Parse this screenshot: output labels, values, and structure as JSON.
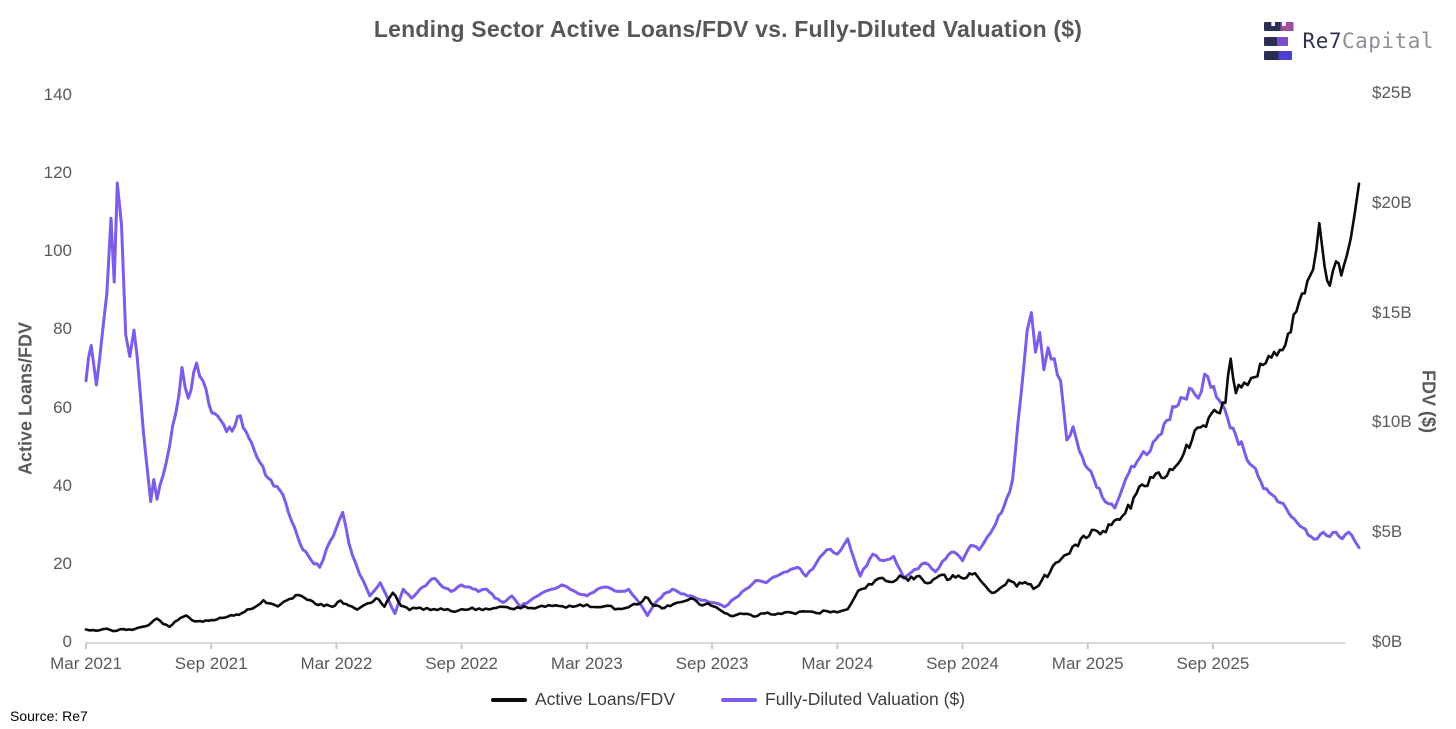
{
  "header": {
    "title": "Lending Sector Active Loans/FDV vs. Fully-Diluted Valuation ($)"
  },
  "branding": {
    "logo_text_primary": "Re7",
    "logo_text_secondary": "Capital",
    "logo_mark": "re7-stacked-bars-icon"
  },
  "footer": {
    "source": "Source: Re7"
  },
  "chart_data": {
    "type": "line",
    "title": "Lending Sector Active Loans/FDV vs. Fully-Diluted Valuation ($)",
    "grid": false,
    "legend_position": "bottom",
    "x_axis": {
      "unit": "months since Mar 2021",
      "range_months": [
        0,
        61
      ],
      "tick_positions_months": [
        0,
        6,
        12,
        18,
        24,
        30,
        36,
        42,
        48,
        54
      ],
      "tick_labels": [
        "Mar 2021",
        "Sep 2021",
        "Mar 2022",
        "Sep 2022",
        "Mar 2023",
        "Sep 2023",
        "Mar 2024",
        "Sep 2024",
        "Mar 2025",
        "Sep 2025"
      ]
    },
    "y_left": {
      "label": "Active Loans/FDV",
      "range": [
        0,
        140
      ],
      "ticks": [
        0,
        20,
        40,
        60,
        80,
        100,
        120,
        140
      ]
    },
    "y_right": {
      "label": "FDV ($)",
      "range_billions": [
        0,
        25
      ],
      "tick_values": [
        0,
        5,
        10,
        15,
        20,
        25
      ],
      "tick_labels": [
        "$0B",
        "$5B",
        "$10B",
        "$15B",
        "$20B",
        "$25B"
      ]
    },
    "series": [
      {
        "name": "Active Loans/FDV",
        "axis": "left",
        "color": "#0b0b0b",
        "points": [
          [
            0,
            3.2
          ],
          [
            0.5,
            2.9
          ],
          [
            1,
            3.4
          ],
          [
            1.3,
            2.8
          ],
          [
            1.8,
            3.3
          ],
          [
            2.2,
            3.1
          ],
          [
            2.6,
            3.8
          ],
          [
            3,
            4.3
          ],
          [
            3.4,
            6
          ],
          [
            3.7,
            4.6
          ],
          [
            4,
            3.9
          ],
          [
            4.4,
            5.6
          ],
          [
            4.8,
            6.8
          ],
          [
            5.2,
            5.3
          ],
          [
            5.6,
            5.2
          ],
          [
            6,
            5.6
          ],
          [
            6.4,
            6.2
          ],
          [
            6.8,
            6.5
          ],
          [
            7.2,
            7
          ],
          [
            7.6,
            7.7
          ],
          [
            8,
            8.6
          ],
          [
            8.5,
            10.7
          ],
          [
            8.8,
            9.9
          ],
          [
            9.2,
            9.1
          ],
          [
            9.6,
            10.6
          ],
          [
            10.2,
            12
          ],
          [
            10.6,
            10.8
          ],
          [
            11,
            9.7
          ],
          [
            11.4,
            9.2
          ],
          [
            11.8,
            9
          ],
          [
            12.2,
            10.6
          ],
          [
            12.6,
            9.3
          ],
          [
            13,
            8.3
          ],
          [
            13.5,
            9.9
          ],
          [
            13.9,
            11.2
          ],
          [
            14.3,
            9
          ],
          [
            14.7,
            12.6
          ],
          [
            15.1,
            9.3
          ],
          [
            15.5,
            8.2
          ],
          [
            16,
            8.8
          ],
          [
            16.5,
            8.2
          ],
          [
            17,
            8.6
          ],
          [
            17.5,
            7.9
          ],
          [
            18,
            8.4
          ],
          [
            18.5,
            8.8
          ],
          [
            19,
            8.2
          ],
          [
            19.5,
            8.6
          ],
          [
            20,
            9
          ],
          [
            20.5,
            8.4
          ],
          [
            21,
            9.2
          ],
          [
            21.5,
            8.6
          ],
          [
            22,
            9
          ],
          [
            22.5,
            9.4
          ],
          [
            23,
            8.8
          ],
          [
            23.5,
            9.2
          ],
          [
            24,
            9.6
          ],
          [
            24.5,
            8.9
          ],
          [
            25,
            9.3
          ],
          [
            25.5,
            8.5
          ],
          [
            26,
            8.9
          ],
          [
            26.4,
            9.6
          ],
          [
            26.8,
            11.5
          ],
          [
            27.2,
            9.3
          ],
          [
            27.6,
            8.6
          ],
          [
            28,
            9.2
          ],
          [
            28.5,
            10.2
          ],
          [
            29,
            11.2
          ],
          [
            29.4,
            9.6
          ],
          [
            29.8,
            9.9
          ],
          [
            30.2,
            8.9
          ],
          [
            30.6,
            7.4
          ],
          [
            31,
            6.6
          ],
          [
            31.5,
            7.2
          ],
          [
            32,
            6.5
          ],
          [
            32.5,
            7.3
          ],
          [
            33,
            7
          ],
          [
            33.5,
            7.6
          ],
          [
            34,
            7.2
          ],
          [
            34.5,
            7.8
          ],
          [
            35,
            7.4
          ],
          [
            35.5,
            7.9
          ],
          [
            36,
            7.6
          ],
          [
            36.5,
            8.4
          ],
          [
            37,
            13.1
          ],
          [
            37.5,
            14.8
          ],
          [
            38,
            16.3
          ],
          [
            38.5,
            15.4
          ],
          [
            39,
            17
          ],
          [
            39.4,
            15.7
          ],
          [
            39.8,
            16.8
          ],
          [
            40.2,
            15.2
          ],
          [
            40.6,
            16
          ],
          [
            41,
            17.2
          ],
          [
            41.4,
            16.1
          ],
          [
            41.8,
            17
          ],
          [
            42.2,
            16.5
          ],
          [
            42.6,
            17.6
          ],
          [
            43,
            14.9
          ],
          [
            43.4,
            12.6
          ],
          [
            43.8,
            13.8
          ],
          [
            44.2,
            15.9
          ],
          [
            44.6,
            14.2
          ],
          [
            45,
            15.3
          ],
          [
            45.4,
            13.6
          ],
          [
            45.8,
            15.8
          ],
          [
            46.2,
            17.9
          ],
          [
            46.6,
            20.5
          ],
          [
            47,
            22.4
          ],
          [
            47.4,
            24.9
          ],
          [
            47.8,
            27.2
          ],
          [
            48.2,
            28.7
          ],
          [
            48.6,
            27.6
          ],
          [
            49,
            30.1
          ],
          [
            49.4,
            31.4
          ],
          [
            49.8,
            33
          ],
          [
            50.2,
            36.9
          ],
          [
            50.6,
            40.3
          ],
          [
            51,
            42.2
          ],
          [
            51.4,
            43.4
          ],
          [
            51.8,
            42.6
          ],
          [
            52.2,
            44.9
          ],
          [
            52.6,
            48.2
          ],
          [
            53,
            51.7
          ],
          [
            53.4,
            54.9
          ],
          [
            53.8,
            57.4
          ],
          [
            54.2,
            58.8
          ],
          [
            54.6,
            61.2
          ],
          [
            54.85,
            72.5
          ],
          [
            55.1,
            63.7
          ],
          [
            55.5,
            66.4
          ],
          [
            56,
            67.8
          ],
          [
            56.4,
            70.9
          ],
          [
            56.8,
            72.8
          ],
          [
            57.2,
            74.7
          ],
          [
            57.6,
            78.9
          ],
          [
            58,
            84.6
          ],
          [
            58.4,
            89.2
          ],
          [
            58.8,
            95.3
          ],
          [
            59.1,
            107.2
          ],
          [
            59.35,
            96.1
          ],
          [
            59.6,
            91.2
          ],
          [
            59.9,
            97.4
          ],
          [
            60.15,
            93.8
          ],
          [
            60.4,
            98.6
          ],
          [
            60.6,
            103.2
          ],
          [
            60.8,
            109.8
          ],
          [
            61,
            117.3
          ]
        ]
      },
      {
        "name": "Fully-Diluted Valuation ($)",
        "axis": "right",
        "color": "#7c5ce8",
        "unit": "USD billions",
        "points": [
          [
            0,
            11.9
          ],
          [
            0.25,
            13.5
          ],
          [
            0.5,
            11.7
          ],
          [
            0.8,
            14.2
          ],
          [
            1,
            15.9
          ],
          [
            1.2,
            19.3
          ],
          [
            1.35,
            16.4
          ],
          [
            1.5,
            20.9
          ],
          [
            1.7,
            19
          ],
          [
            1.9,
            14
          ],
          [
            2.1,
            13
          ],
          [
            2.3,
            14.2
          ],
          [
            2.6,
            11.3
          ],
          [
            2.9,
            8.2
          ],
          [
            3.1,
            6.4
          ],
          [
            3.25,
            7.4
          ],
          [
            3.4,
            6.5
          ],
          [
            3.7,
            7.6
          ],
          [
            4,
            8.9
          ],
          [
            4.3,
            10.4
          ],
          [
            4.6,
            12.5
          ],
          [
            4.9,
            11.1
          ],
          [
            5.3,
            12.7
          ],
          [
            5.6,
            11.9
          ],
          [
            5.9,
            10.8
          ],
          [
            6.3,
            10.3
          ],
          [
            6.6,
            9.9
          ],
          [
            7,
            9.6
          ],
          [
            7.4,
            10.3
          ],
          [
            7.8,
            9.3
          ],
          [
            8.2,
            8.4
          ],
          [
            8.6,
            7.6
          ],
          [
            9,
            7.1
          ],
          [
            9.3,
            6.9
          ],
          [
            9.7,
            5.9
          ],
          [
            10,
            5.2
          ],
          [
            10.4,
            4.2
          ],
          [
            10.8,
            3.7
          ],
          [
            11.2,
            3.4
          ],
          [
            11.7,
            4.6
          ],
          [
            12,
            5.2
          ],
          [
            12.3,
            5.9
          ],
          [
            12.6,
            4.5
          ],
          [
            13.1,
            3.1
          ],
          [
            13.6,
            2.1
          ],
          [
            14.1,
            2.7
          ],
          [
            14.5,
            1.9
          ],
          [
            14.8,
            1.3
          ],
          [
            15.2,
            2.4
          ],
          [
            15.6,
            2
          ],
          [
            16,
            2.4
          ],
          [
            16.4,
            2.7
          ],
          [
            16.7,
            2.9
          ],
          [
            17.1,
            2.5
          ],
          [
            17.5,
            2.3
          ],
          [
            18,
            2.6
          ],
          [
            18.4,
            2.5
          ],
          [
            18.8,
            2.3
          ],
          [
            19.2,
            2.4
          ],
          [
            19.6,
            2
          ],
          [
            20,
            1.8
          ],
          [
            20.4,
            2.1
          ],
          [
            20.8,
            1.6
          ],
          [
            21.3,
            1.9
          ],
          [
            21.8,
            2.2
          ],
          [
            22.3,
            2.4
          ],
          [
            22.8,
            2.6
          ],
          [
            23.2,
            2.4
          ],
          [
            23.6,
            2.2
          ],
          [
            24,
            2.1
          ],
          [
            24.5,
            2.4
          ],
          [
            25,
            2.5
          ],
          [
            25.5,
            2.3
          ],
          [
            26,
            2.4
          ],
          [
            26.5,
            1.8
          ],
          [
            26.9,
            1.2
          ],
          [
            27.3,
            1.8
          ],
          [
            27.7,
            2.2
          ],
          [
            28.1,
            2.4
          ],
          [
            28.5,
            2.2
          ],
          [
            29,
            2.1
          ],
          [
            29.5,
            1.9
          ],
          [
            30,
            1.8
          ],
          [
            30.6,
            1.6
          ],
          [
            31.1,
            2
          ],
          [
            31.6,
            2.4
          ],
          [
            32.1,
            2.8
          ],
          [
            32.6,
            2.7
          ],
          [
            33.1,
            3
          ],
          [
            33.6,
            3.2
          ],
          [
            34.1,
            3.4
          ],
          [
            34.5,
            3
          ],
          [
            35,
            3.6
          ],
          [
            35.5,
            4.2
          ],
          [
            36,
            4
          ],
          [
            36.5,
            4.7
          ],
          [
            37.1,
            3
          ],
          [
            37.7,
            4
          ],
          [
            38.2,
            3.7
          ],
          [
            38.7,
            3.9
          ],
          [
            39.2,
            2.9
          ],
          [
            39.7,
            3.3
          ],
          [
            40.2,
            3.6
          ],
          [
            40.7,
            3.2
          ],
          [
            41.2,
            3.8
          ],
          [
            41.6,
            4.1
          ],
          [
            42,
            3.7
          ],
          [
            42.4,
            4.4
          ],
          [
            42.8,
            4.2
          ],
          [
            43.2,
            4.8
          ],
          [
            43.6,
            5.4
          ],
          [
            44,
            6.2
          ],
          [
            44.4,
            7.4
          ],
          [
            44.8,
            11.2
          ],
          [
            45.1,
            14.2
          ],
          [
            45.3,
            15
          ],
          [
            45.5,
            13.2
          ],
          [
            45.7,
            14.1
          ],
          [
            45.9,
            12.4
          ],
          [
            46.1,
            13.4
          ],
          [
            46.4,
            12.9
          ],
          [
            46.7,
            11.9
          ],
          [
            47,
            9.2
          ],
          [
            47.3,
            9.8
          ],
          [
            47.6,
            8.7
          ],
          [
            48,
            7.9
          ],
          [
            48.3,
            7.4
          ],
          [
            48.7,
            6.6
          ],
          [
            49,
            6.3
          ],
          [
            49.3,
            6.1
          ],
          [
            49.7,
            7.1
          ],
          [
            50.1,
            8
          ],
          [
            50.5,
            8.4
          ],
          [
            51,
            8.7
          ],
          [
            51.4,
            9.4
          ],
          [
            51.8,
            10.1
          ],
          [
            52.2,
            10.7
          ],
          [
            52.6,
            11.1
          ],
          [
            53,
            11.5
          ],
          [
            53.3,
            11.1
          ],
          [
            53.6,
            12.2
          ],
          [
            53.9,
            11.6
          ],
          [
            54.3,
            11
          ],
          [
            54.7,
            10.2
          ],
          [
            55.1,
            9.4
          ],
          [
            55.5,
            8.7
          ],
          [
            55.9,
            8
          ],
          [
            56.3,
            7.3
          ],
          [
            56.7,
            6.8
          ],
          [
            57.1,
            6.4
          ],
          [
            57.5,
            6.1
          ],
          [
            57.9,
            5.6
          ],
          [
            58.3,
            5.2
          ],
          [
            58.7,
            4.8
          ],
          [
            59,
            4.7
          ],
          [
            59.3,
            5
          ],
          [
            59.6,
            4.8
          ],
          [
            59.9,
            5
          ],
          [
            60.2,
            4.7
          ],
          [
            60.5,
            5
          ],
          [
            60.8,
            4.6
          ],
          [
            61,
            4.3
          ]
        ]
      }
    ]
  }
}
